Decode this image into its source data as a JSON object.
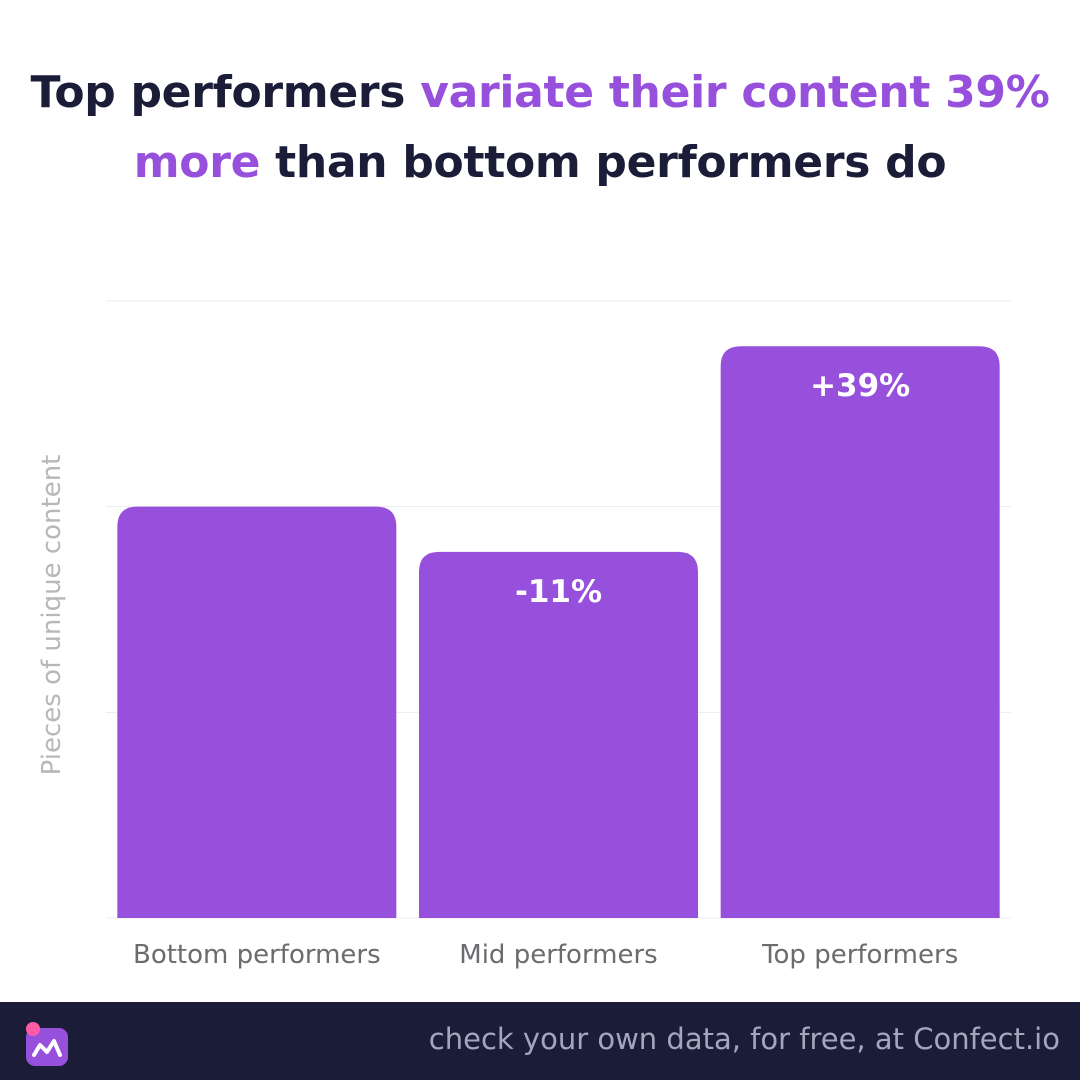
{
  "title": {
    "part1": "Top performers ",
    "highlight": "variate their content 39% more",
    "part2": " than bottom performers do"
  },
  "colors": {
    "bar": "#9750dc",
    "title_text": "#1b1d38",
    "highlight": "#9750dc",
    "footer_bg": "#1b1d38"
  },
  "chart_data": {
    "type": "bar",
    "categories": [
      "Bottom performers",
      "Mid performers",
      "Top performers"
    ],
    "values": [
      100,
      89,
      139
    ],
    "data_labels": [
      "",
      "-11%",
      "+39%"
    ],
    "ylabel": "Pieces of unique content",
    "ylim": [
      0,
      150
    ],
    "grid": true
  },
  "footer": {
    "cta": "check your own data, for free, at Confect.io",
    "logo_icon": "confect-logo-icon"
  }
}
